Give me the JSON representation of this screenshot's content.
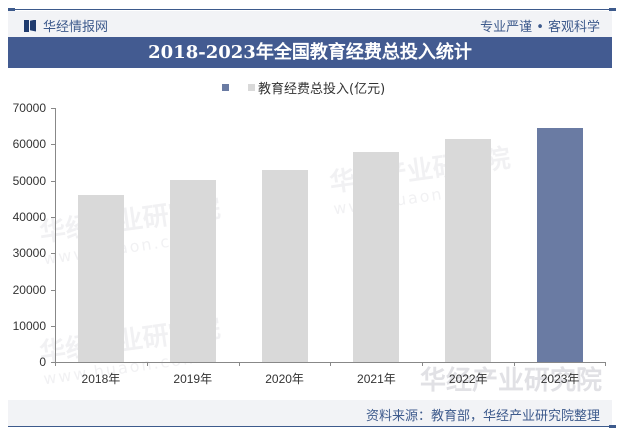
{
  "header": {
    "brand": "华经情报网",
    "slogan": "专业严谨 • 客观科学"
  },
  "title": "2018-2023年全国教育经费总投入统计",
  "legend": {
    "label": "教育经费总投入(亿元)"
  },
  "footer": {
    "source": "资料来源：教育部，华经产业研究院整理"
  },
  "watermark": {
    "text": "华经产业研究院",
    "url": "www.huaon.com"
  },
  "colors": {
    "bar_default": "#d9d9d9",
    "bar_highlight": "#6a7ba3",
    "title_bg": "#435b91",
    "accent": "#3d5a8c"
  },
  "axis": {
    "y_ticks": [
      "70000",
      "60000",
      "50000",
      "40000",
      "30000",
      "20000",
      "10000",
      "0"
    ]
  },
  "chart_data": {
    "type": "bar",
    "title": "2018-2023年全国教育经费总投入统计",
    "xlabel": "",
    "ylabel": "",
    "categories": [
      "2018年",
      "2019年",
      "2020年",
      "2021年",
      "2022年",
      "2023年"
    ],
    "series": [
      {
        "name": "教育经费总投入(亿元)",
        "values": [
          46143,
          50178,
          53014,
          57874,
          61329,
          64595
        ]
      }
    ],
    "ylim": [
      0,
      70000
    ],
    "y_ticks": [
      0,
      10000,
      20000,
      30000,
      40000,
      50000,
      60000,
      70000
    ],
    "grid": false,
    "legend_position": "top",
    "highlight_index": 5
  }
}
